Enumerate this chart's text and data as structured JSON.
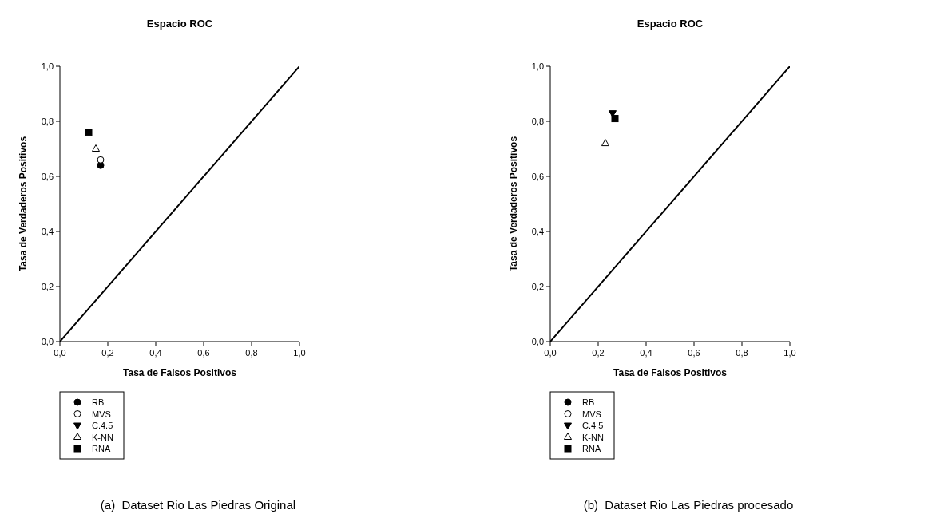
{
  "chart_data": [
    {
      "type": "scatter",
      "title": "Espacio ROC",
      "xlabel": "Tasa de Falsos Positivos",
      "ylabel": "Tasa de Verdaderos Positivos",
      "xlim": [
        0,
        1
      ],
      "ylim": [
        0,
        1
      ],
      "xticks": [
        {
          "value": 0,
          "label": "0,0"
        },
        {
          "value": 0.2,
          "label": "0,2"
        },
        {
          "value": 0.4,
          "label": "0,4"
        },
        {
          "value": 0.6,
          "label": "0,6"
        },
        {
          "value": 0.8,
          "label": "0,8"
        },
        {
          "value": 1,
          "label": "1,0"
        }
      ],
      "yticks": [
        {
          "value": 0,
          "label": "0,0"
        },
        {
          "value": 0.2,
          "label": "0,2"
        },
        {
          "value": 0.4,
          "label": "0,4"
        },
        {
          "value": 0.6,
          "label": "0,6"
        },
        {
          "value": 0.8,
          "label": "0,8"
        },
        {
          "value": 1,
          "label": "1,0"
        }
      ],
      "legend": "bottom left",
      "annotations": [
        "(a)  Dataset Rio Las Piedras Original"
      ],
      "series": [
        {
          "type": "line",
          "color": "#000000",
          "x": [
            0,
            1
          ],
          "values": [
            0,
            1
          ]
        },
        {
          "name": "RB",
          "color": "#000000",
          "marker": "circle",
          "x": [
            0.17
          ],
          "values": [
            0.64
          ]
        },
        {
          "name": "MVS",
          "color": "#ffffff",
          "marker": "circle",
          "x": [
            0.17
          ],
          "values": [
            0.66
          ]
        },
        {
          "name": "C.4.5",
          "color": "#000000",
          "marker": "triangle-down"
        },
        {
          "name": "K-NN",
          "color": "#ffffff",
          "marker": "triangle",
          "x": [
            0.15
          ],
          "values": [
            0.7
          ]
        },
        {
          "name": "RNA",
          "color": "#000000",
          "marker": "square",
          "x": [
            0.12
          ],
          "values": [
            0.76
          ]
        }
      ]
    },
    {
      "type": "scatter",
      "title": "Espacio ROC",
      "xlabel": "Tasa de Falsos Positivos",
      "ylabel": "Tasa de Verdaderos Positivos",
      "xlim": [
        0,
        1
      ],
      "ylim": [
        0,
        1
      ],
      "xticks": [
        {
          "value": 0,
          "label": "0,0"
        },
        {
          "value": 0.2,
          "label": "0,2"
        },
        {
          "value": 0.4,
          "label": "0,4"
        },
        {
          "value": 0.6,
          "label": "0,6"
        },
        {
          "value": 0.8,
          "label": "0,8"
        },
        {
          "value": 1,
          "label": "1,0"
        }
      ],
      "yticks": [
        {
          "value": 0,
          "label": "0,0"
        },
        {
          "value": 0.2,
          "label": "0,2"
        },
        {
          "value": 0.4,
          "label": "0,4"
        },
        {
          "value": 0.6,
          "label": "0,6"
        },
        {
          "value": 0.8,
          "label": "0,8"
        },
        {
          "value": 1,
          "label": "1,0"
        }
      ],
      "legend": "bottom left",
      "annotations": [
        "(b)  Dataset Rio Las Piedras procesado"
      ],
      "series": [
        {
          "type": "line",
          "color": "#000000",
          "x": [
            0,
            1
          ],
          "values": [
            0,
            1
          ]
        },
        {
          "name": "RB",
          "color": "#000000",
          "marker": "circle"
        },
        {
          "name": "MVS",
          "color": "#ffffff",
          "marker": "circle"
        },
        {
          "name": "C.4.5",
          "color": "#000000",
          "marker": "triangle-down",
          "x": [
            0.26
          ],
          "values": [
            0.83
          ]
        },
        {
          "name": "K-NN",
          "color": "#ffffff",
          "marker": "triangle",
          "x": [
            0.23
          ],
          "values": [
            0.72
          ]
        },
        {
          "name": "RNA",
          "color": "#000000",
          "marker": "square",
          "x": [
            0.27
          ],
          "values": [
            0.81
          ]
        }
      ]
    }
  ]
}
